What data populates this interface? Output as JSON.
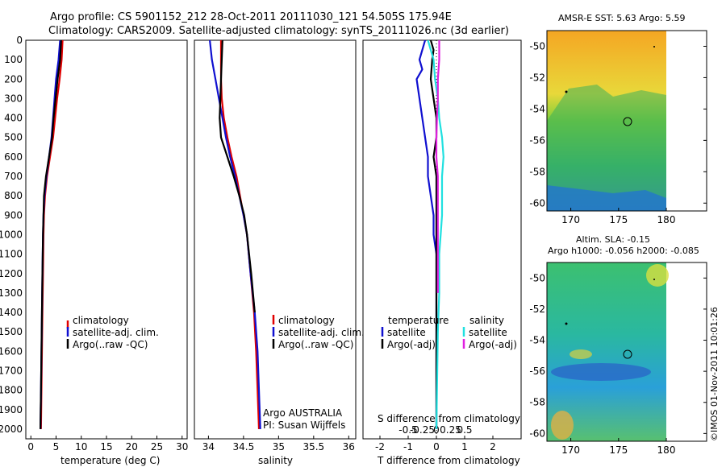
{
  "header": {
    "line1": "Argo profile: CS 5901152_212 28-Oct-2011 20111030_121 54.505S 175.94E",
    "line2": "Climatology: CARS2009. Satellite-adjusted climatology: synTS_20111026.nc (3d earlier)"
  },
  "depth_ticks": [
    "0",
    "100",
    "200",
    "300",
    "400",
    "500",
    "600",
    "700",
    "800",
    "900",
    "1000",
    "1100",
    "1200",
    "1300",
    "1400",
    "1500",
    "1600",
    "1700",
    "1800",
    "1900",
    "2000"
  ],
  "colors": {
    "climatology": "#e00000",
    "satellite": "#1010d0",
    "argo": "#000000",
    "sat_sal": "#20e0e0",
    "argo_sal": "#e020e0"
  },
  "chart_data": [
    {
      "type": "line",
      "id": "temperature",
      "xlabel": "temperature (deg C)",
      "xlim": [
        -1,
        31
      ],
      "xticks": [
        "0",
        "5",
        "10",
        "15",
        "20",
        "25",
        "30"
      ],
      "ylim": [
        2050,
        0
      ],
      "legend": [
        "climatology",
        "satellite-adj. clim.",
        "Argo(..raw -QC)"
      ],
      "series": [
        {
          "name": "climatology",
          "color": "#e00000",
          "points": [
            [
              6.3,
              0
            ],
            [
              6.1,
              100
            ],
            [
              5.7,
              200
            ],
            [
              5.2,
              300
            ],
            [
              4.8,
              400
            ],
            [
              4.4,
              500
            ],
            [
              3.8,
              600
            ],
            [
              3.2,
              700
            ],
            [
              2.8,
              800
            ],
            [
              2.6,
              900
            ],
            [
              2.5,
              1000
            ],
            [
              2.4,
              1200
            ],
            [
              2.3,
              1400
            ],
            [
              2.2,
              1600
            ],
            [
              2.1,
              1800
            ],
            [
              2.0,
              2000
            ]
          ]
        },
        {
          "name": "satellite-adj. clim.",
          "color": "#1010d0",
          "points": [
            [
              5.8,
              0
            ],
            [
              5.5,
              100
            ],
            [
              5.0,
              200
            ],
            [
              4.7,
              300
            ],
            [
              4.4,
              400
            ],
            [
              4.1,
              500
            ],
            [
              3.6,
              600
            ],
            [
              3.1,
              700
            ],
            [
              2.7,
              800
            ],
            [
              2.5,
              900
            ],
            [
              2.4,
              1000
            ],
            [
              2.3,
              1200
            ],
            [
              2.2,
              1400
            ],
            [
              2.1,
              1600
            ],
            [
              2.0,
              1800
            ],
            [
              1.9,
              2000
            ]
          ]
        },
        {
          "name": "Argo(..raw -QC)",
          "color": "#000000",
          "points": [
            [
              6.0,
              0
            ],
            [
              5.8,
              100
            ],
            [
              5.3,
              200
            ],
            [
              4.9,
              300
            ],
            [
              4.5,
              400
            ],
            [
              4.2,
              500
            ],
            [
              3.6,
              600
            ],
            [
              3.0,
              700
            ],
            [
              2.6,
              800
            ],
            [
              2.5,
              900
            ],
            [
              2.4,
              1000
            ],
            [
              2.3,
              1200
            ],
            [
              2.2,
              1400
            ],
            [
              2.1,
              1600
            ],
            [
              2.0,
              1800
            ],
            [
              1.9,
              2000
            ]
          ]
        }
      ]
    },
    {
      "type": "line",
      "id": "salinity",
      "xlabel": "salinity",
      "xlim": [
        33.8,
        36.1
      ],
      "xticks": [
        "34",
        "34.5",
        "35",
        "35.5",
        "36"
      ],
      "ylim": [
        2050,
        0
      ],
      "legend": [
        "climatology",
        "satellite-adj. clim.",
        "Argo(..raw -QC)"
      ],
      "annotation": [
        "Argo AUSTRALIA",
        "PI: Susan Wijffels"
      ],
      "series": [
        {
          "name": "climatology",
          "color": "#e00000",
          "points": [
            [
              34.18,
              0
            ],
            [
              34.18,
              200
            ],
            [
              34.19,
              300
            ],
            [
              34.22,
              400
            ],
            [
              34.27,
              500
            ],
            [
              34.33,
              600
            ],
            [
              34.4,
              700
            ],
            [
              34.45,
              800
            ],
            [
              34.5,
              900
            ],
            [
              34.55,
              1000
            ],
            [
              34.6,
              1200
            ],
            [
              34.65,
              1400
            ],
            [
              34.68,
              1600
            ],
            [
              34.7,
              1800
            ],
            [
              34.72,
              2000
            ]
          ]
        },
        {
          "name": "satellite-adj. clim.",
          "color": "#1010d0",
          "points": [
            [
              34.02,
              0
            ],
            [
              34.05,
              100
            ],
            [
              34.1,
              200
            ],
            [
              34.15,
              300
            ],
            [
              34.2,
              400
            ],
            [
              34.25,
              500
            ],
            [
              34.31,
              600
            ],
            [
              34.38,
              700
            ],
            [
              34.44,
              800
            ],
            [
              34.5,
              900
            ],
            [
              34.55,
              1000
            ],
            [
              34.6,
              1200
            ],
            [
              34.66,
              1400
            ],
            [
              34.7,
              1600
            ],
            [
              34.72,
              1800
            ],
            [
              34.74,
              2000
            ]
          ]
        },
        {
          "name": "Argo(..raw -QC)",
          "color": "#000000",
          "points": [
            [
              34.2,
              0
            ],
            [
              34.19,
              100
            ],
            [
              34.18,
              200
            ],
            [
              34.17,
              300
            ],
            [
              34.16,
              400
            ],
            [
              34.18,
              500
            ],
            [
              34.27,
              600
            ],
            [
              34.36,
              700
            ],
            [
              34.44,
              800
            ],
            [
              34.51,
              900
            ],
            [
              34.55,
              1000
            ],
            [
              34.61,
              1200
            ],
            [
              34.66,
              1400
            ]
          ]
        }
      ]
    },
    {
      "type": "line",
      "id": "differences",
      "xlabel": "T difference from climatology",
      "xlim": [
        -2.6,
        3.0
      ],
      "xticks": [
        "-2",
        "-1",
        "0",
        "1",
        "2"
      ],
      "second_axis_label": "S difference from climatology",
      "second_axis_ticks": [
        "-0.5",
        "-0.25",
        "0",
        "0.25",
        "0.5"
      ],
      "ylim": [
        2050,
        0
      ],
      "legend_left_title": "temperature",
      "legend_right_title": "salinity",
      "legend": [
        "satellite",
        "Argo(-adj)",
        "satellite",
        "Argo(-adj)"
      ],
      "series": [
        {
          "name": "temperature satellite",
          "color": "#1010d0",
          "points": [
            [
              -0.4,
              0
            ],
            [
              -0.5,
              50
            ],
            [
              -0.6,
              100
            ],
            [
              -0.5,
              150
            ],
            [
              -0.7,
              200
            ],
            [
              -0.6,
              300
            ],
            [
              -0.5,
              400
            ],
            [
              -0.4,
              500
            ],
            [
              -0.3,
              600
            ],
            [
              -0.3,
              700
            ],
            [
              -0.2,
              800
            ],
            [
              -0.1,
              900
            ],
            [
              -0.1,
              1000
            ],
            [
              0,
              1100
            ],
            [
              0,
              1300
            ],
            [
              0,
              1500
            ],
            [
              0,
              1700
            ],
            [
              0,
              1900
            ],
            [
              0,
              2000
            ]
          ]
        },
        {
          "name": "temperature Argo(-adj)",
          "color": "#000000",
          "points": [
            [
              -0.2,
              0
            ],
            [
              -0.1,
              50
            ],
            [
              -0.15,
              100
            ],
            [
              -0.2,
              200
            ],
            [
              -0.1,
              300
            ],
            [
              0,
              400
            ],
            [
              0,
              500
            ],
            [
              -0.1,
              600
            ],
            [
              0,
              700
            ],
            [
              0,
              800
            ],
            [
              0,
              900
            ],
            [
              0,
              1000
            ],
            [
              0,
              1200
            ],
            [
              0,
              1400
            ],
            [
              0,
              1600
            ],
            [
              0,
              1800
            ],
            [
              0,
              2000
            ]
          ]
        },
        {
          "name": "salinity satellite",
          "color": "#20e0e0",
          "points": [
            [
              -0.3,
              0
            ],
            [
              -0.2,
              50
            ],
            [
              -0.1,
              100
            ],
            [
              -0.05,
              200
            ],
            [
              0.05,
              300
            ],
            [
              0.1,
              400
            ],
            [
              0.2,
              500
            ],
            [
              0.25,
              600
            ],
            [
              0.2,
              700
            ],
            [
              0.2,
              800
            ],
            [
              0.2,
              900
            ],
            [
              0.15,
              1000
            ],
            [
              0.1,
              1100
            ],
            [
              0.1,
              1300
            ],
            [
              0.05,
              1500
            ],
            [
              0.02,
              1800
            ],
            [
              0,
              2000
            ]
          ]
        },
        {
          "name": "salinity Argo(-adj)",
          "color": "#e020e0",
          "points": [
            [
              0.1,
              0
            ],
            [
              0.1,
              100
            ],
            [
              0.05,
              200
            ],
            [
              0.05,
              300
            ],
            [
              0.02,
              400
            ],
            [
              0,
              500
            ],
            [
              0,
              600
            ],
            [
              0.05,
              700
            ],
            [
              0.05,
              800
            ],
            [
              0.05,
              900
            ],
            [
              0.05,
              1000
            ],
            [
              0.05,
              1200
            ],
            [
              0.05,
              1300
            ]
          ]
        }
      ]
    },
    {
      "type": "heatmap",
      "id": "sst_map",
      "title": "AMSR-E SST: 5.63 Argo: 5.59",
      "xticks": [
        "170",
        "175",
        "180"
      ],
      "yticks": [
        "-50",
        "-52",
        "-54",
        "-56",
        "-58",
        "-60"
      ],
      "xlim": [
        167.5,
        180
      ],
      "ylim": [
        -60.5,
        -49
      ]
    },
    {
      "type": "heatmap",
      "id": "sla_map",
      "title_line1": "Altim. SLA: -0.15",
      "title_line2": "Argo h1000: -0.056 h2000: -0.085",
      "xticks": [
        "170",
        "175",
        "180"
      ],
      "yticks": [
        "-50",
        "-52",
        "-54",
        "-56",
        "-58",
        "-60"
      ],
      "xlim": [
        167.5,
        180
      ],
      "ylim": [
        -60.5,
        -49
      ]
    }
  ],
  "footer_stamp": "©IMOS 01-Nov-2011 10:01:26"
}
